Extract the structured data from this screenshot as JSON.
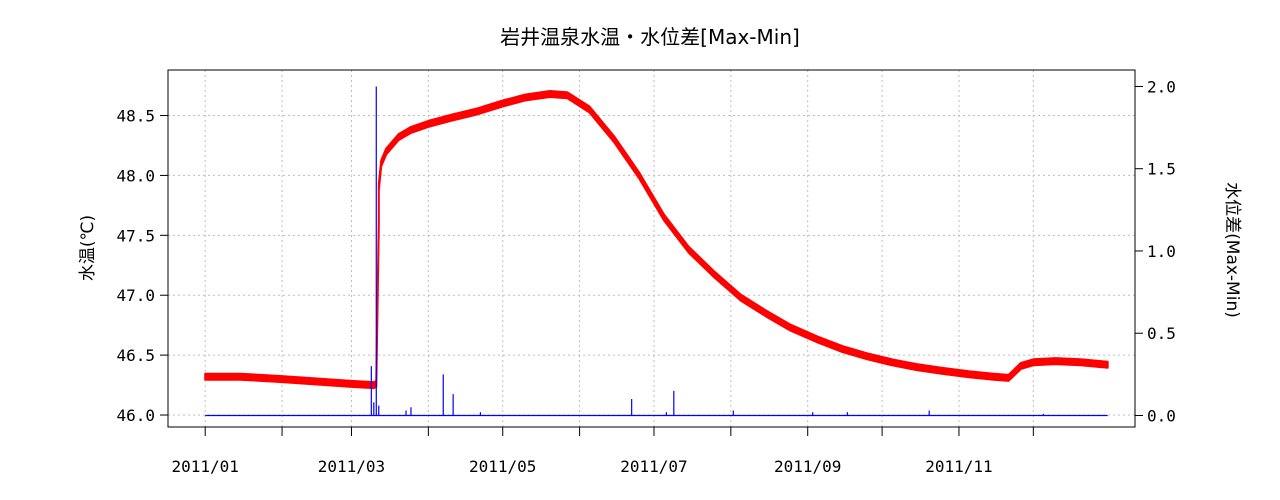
{
  "chart_data": {
    "type": "line",
    "title": "岩井温泉水温・水位差[Max-Min]",
    "ylabel": "水温(℃)",
    "y2label": "水位差(Max-Min)",
    "xlabel": "",
    "xlim": [
      "2010-12-17",
      "2012-01-11"
    ],
    "ylim": [
      45.9,
      48.88
    ],
    "y2lim": [
      -0.07,
      2.1
    ],
    "x_ticks": [
      "2011-01-01",
      "2011-02-01",
      "2011-03-01",
      "2011-04-01",
      "2011-05-01",
      "2011-06-01",
      "2011-07-01",
      "2011-08-01",
      "2011-09-01",
      "2011-10-01",
      "2011-11-01",
      "2011-12-01"
    ],
    "x_tick_labels": [
      {
        "date": "2011-01-01",
        "label": "2011/01"
      },
      {
        "date": "2011-03-01",
        "label": "2011/03"
      },
      {
        "date": "2011-05-01",
        "label": "2011/05"
      },
      {
        "date": "2011-07-01",
        "label": "2011/07"
      },
      {
        "date": "2011-09-01",
        "label": "2011/09"
      },
      {
        "date": "2011-11-01",
        "label": "2011/11"
      }
    ],
    "y_ticks": [
      "46.0",
      "46.5",
      "47.0",
      "47.5",
      "48.0",
      "48.5"
    ],
    "y2_ticks": [
      "0.0",
      "0.5",
      "1.0",
      "1.5",
      "2.0"
    ],
    "grid": true,
    "series": [
      {
        "axis": "left",
        "color": "#ff0000",
        "band_width": 0.05,
        "points": [
          [
            "2011-01-01",
            46.32
          ],
          [
            "2011-01-15",
            46.32
          ],
          [
            "2011-02-01",
            46.3
          ],
          [
            "2011-02-15",
            46.28
          ],
          [
            "2011-03-01",
            46.26
          ],
          [
            "2011-03-10",
            46.25
          ],
          [
            "2011-03-11",
            46.26
          ],
          [
            "2011-03-12",
            47.6
          ],
          [
            "2011-03-12",
            47.9
          ],
          [
            "2011-03-13",
            48.1
          ],
          [
            "2011-03-15",
            48.2
          ],
          [
            "2011-03-20",
            48.32
          ],
          [
            "2011-03-25",
            48.38
          ],
          [
            "2011-04-01",
            48.43
          ],
          [
            "2011-04-10",
            48.48
          ],
          [
            "2011-04-20",
            48.53
          ],
          [
            "2011-05-01",
            48.6
          ],
          [
            "2011-05-10",
            48.65
          ],
          [
            "2011-05-20",
            48.68
          ],
          [
            "2011-05-27",
            48.67
          ],
          [
            "2011-06-05",
            48.55
          ],
          [
            "2011-06-15",
            48.3
          ],
          [
            "2011-06-25",
            48.0
          ],
          [
            "2011-07-05",
            47.65
          ],
          [
            "2011-07-15",
            47.38
          ],
          [
            "2011-07-25",
            47.18
          ],
          [
            "2011-08-05",
            46.98
          ],
          [
            "2011-08-15",
            46.85
          ],
          [
            "2011-08-25",
            46.73
          ],
          [
            "2011-09-05",
            46.63
          ],
          [
            "2011-09-15",
            46.55
          ],
          [
            "2011-09-25",
            46.49
          ],
          [
            "2011-10-05",
            46.44
          ],
          [
            "2011-10-15",
            46.4
          ],
          [
            "2011-10-25",
            46.37
          ],
          [
            "2011-11-05",
            46.34
          ],
          [
            "2011-11-15",
            46.32
          ],
          [
            "2011-11-21",
            46.31
          ],
          [
            "2011-11-23",
            46.35
          ],
          [
            "2011-11-26",
            46.41
          ],
          [
            "2011-12-01",
            46.44
          ],
          [
            "2011-12-10",
            46.45
          ],
          [
            "2011-12-20",
            46.44
          ],
          [
            "2011-12-31",
            46.42
          ]
        ]
      },
      {
        "axis": "right",
        "color": "#0000ff",
        "baseline": 0.0,
        "spikes": [
          [
            "2011-03-09",
            0.3
          ],
          [
            "2011-03-10",
            0.08
          ],
          [
            "2011-03-11",
            2.0
          ],
          [
            "2011-03-12",
            0.06
          ],
          [
            "2011-03-23",
            0.03
          ],
          [
            "2011-03-25",
            0.05
          ],
          [
            "2011-04-07",
            0.25
          ],
          [
            "2011-04-11",
            0.13
          ],
          [
            "2011-04-22",
            0.02
          ],
          [
            "2011-06-22",
            0.1
          ],
          [
            "2011-07-06",
            0.02
          ],
          [
            "2011-07-09",
            0.15
          ],
          [
            "2011-08-02",
            0.03
          ],
          [
            "2011-09-03",
            0.02
          ],
          [
            "2011-09-17",
            0.02
          ],
          [
            "2011-10-20",
            0.03
          ],
          [
            "2011-12-05",
            0.01
          ]
        ]
      }
    ]
  }
}
